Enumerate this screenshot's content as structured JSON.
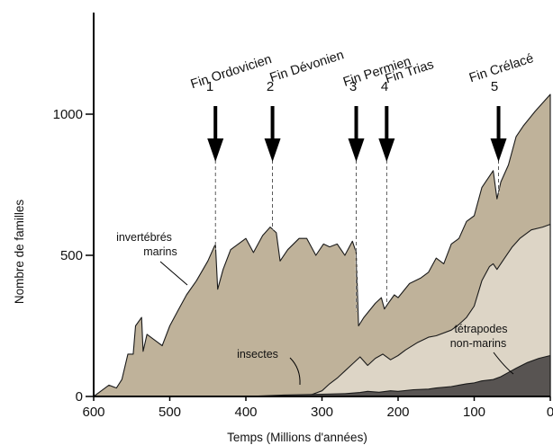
{
  "chart_data": {
    "type": "area",
    "xlabel": "Temps (Millions d'années)",
    "ylabel": "Nombre de familles",
    "xlim": [
      600,
      0
    ],
    "ylim": [
      0,
      1000
    ],
    "x_ticks": [
      "600",
      "500",
      "400",
      "300",
      "200",
      "100",
      "0"
    ],
    "y_ticks": [
      "0",
      "500",
      "1000"
    ],
    "series": [
      {
        "name": "invertébrés marins",
        "color": "#bfb29a",
        "points": [
          [
            600,
            0
          ],
          [
            590,
            20
          ],
          [
            580,
            40
          ],
          [
            570,
            30
          ],
          [
            563,
            60
          ],
          [
            555,
            150
          ],
          [
            548,
            150
          ],
          [
            545,
            250
          ],
          [
            537,
            280
          ],
          [
            535,
            160
          ],
          [
            530,
            220
          ],
          [
            520,
            200
          ],
          [
            510,
            180
          ],
          [
            500,
            250
          ],
          [
            490,
            300
          ],
          [
            478,
            360
          ],
          [
            465,
            410
          ],
          [
            450,
            480
          ],
          [
            440,
            540
          ],
          [
            437,
            380
          ],
          [
            430,
            450
          ],
          [
            420,
            520
          ],
          [
            400,
            560
          ],
          [
            390,
            510
          ],
          [
            378,
            570
          ],
          [
            368,
            600
          ],
          [
            360,
            580
          ],
          [
            355,
            480
          ],
          [
            345,
            520
          ],
          [
            330,
            560
          ],
          [
            320,
            560
          ],
          [
            308,
            500
          ],
          [
            298,
            540
          ],
          [
            290,
            530
          ],
          [
            280,
            540
          ],
          [
            270,
            500
          ],
          [
            260,
            550
          ],
          [
            255,
            510
          ],
          [
            252,
            250
          ],
          [
            245,
            280
          ],
          [
            230,
            330
          ],
          [
            222,
            350
          ],
          [
            218,
            310
          ],
          [
            213,
            330
          ],
          [
            205,
            360
          ],
          [
            200,
            350
          ],
          [
            185,
            400
          ],
          [
            170,
            420
          ],
          [
            160,
            440
          ],
          [
            150,
            490
          ],
          [
            140,
            470
          ],
          [
            130,
            540
          ],
          [
            120,
            560
          ],
          [
            110,
            620
          ],
          [
            100,
            640
          ],
          [
            90,
            740
          ],
          [
            80,
            780
          ],
          [
            75,
            800
          ],
          [
            70,
            700
          ],
          [
            65,
            760
          ],
          [
            55,
            820
          ],
          [
            45,
            920
          ],
          [
            35,
            960
          ],
          [
            20,
            1010
          ],
          [
            0,
            1070
          ]
        ]
      },
      {
        "name": "insectes",
        "color": "#ddd5c6",
        "points": [
          [
            320,
            0
          ],
          [
            300,
            20
          ],
          [
            290,
            45
          ],
          [
            280,
            65
          ],
          [
            270,
            90
          ],
          [
            260,
            115
          ],
          [
            250,
            140
          ],
          [
            240,
            110
          ],
          [
            230,
            135
          ],
          [
            220,
            150
          ],
          [
            210,
            130
          ],
          [
            200,
            145
          ],
          [
            190,
            165
          ],
          [
            175,
            190
          ],
          [
            160,
            210
          ],
          [
            150,
            215
          ],
          [
            130,
            235
          ],
          [
            120,
            255
          ],
          [
            110,
            280
          ],
          [
            100,
            320
          ],
          [
            90,
            410
          ],
          [
            80,
            460
          ],
          [
            75,
            470
          ],
          [
            70,
            450
          ],
          [
            60,
            490
          ],
          [
            50,
            530
          ],
          [
            40,
            560
          ],
          [
            25,
            590
          ],
          [
            10,
            600
          ],
          [
            0,
            610
          ]
        ]
      },
      {
        "name": "tétrapodes non-marins",
        "color": "#585452",
        "points": [
          [
            400,
            0
          ],
          [
            380,
            2
          ],
          [
            350,
            5
          ],
          [
            300,
            8
          ],
          [
            270,
            10
          ],
          [
            250,
            14
          ],
          [
            240,
            18
          ],
          [
            225,
            15
          ],
          [
            210,
            20
          ],
          [
            200,
            18
          ],
          [
            180,
            24
          ],
          [
            160,
            26
          ],
          [
            150,
            30
          ],
          [
            130,
            35
          ],
          [
            120,
            40
          ],
          [
            110,
            45
          ],
          [
            100,
            48
          ],
          [
            90,
            55
          ],
          [
            75,
            60
          ],
          [
            65,
            70
          ],
          [
            55,
            85
          ],
          [
            45,
            100
          ],
          [
            30,
            120
          ],
          [
            15,
            135
          ],
          [
            0,
            145
          ]
        ]
      }
    ],
    "events": [
      {
        "number": "1",
        "label": "Fin Ordovicien",
        "x": 440
      },
      {
        "number": "2",
        "label": "Fin Dévonien",
        "x": 365
      },
      {
        "number": "3",
        "label": "Fin Permien",
        "x": 255
      },
      {
        "number": "4",
        "label": "Fin Trias",
        "x": 215
      },
      {
        "number": "5",
        "label": "Fin Crélacé",
        "x": 68
      }
    ],
    "annotations": [
      {
        "line1": "invertébrés",
        "line2": "marins"
      },
      {
        "line1": "insectes",
        "line2": ""
      },
      {
        "line1": "tétrapodes",
        "line2": "non-marins"
      }
    ]
  }
}
